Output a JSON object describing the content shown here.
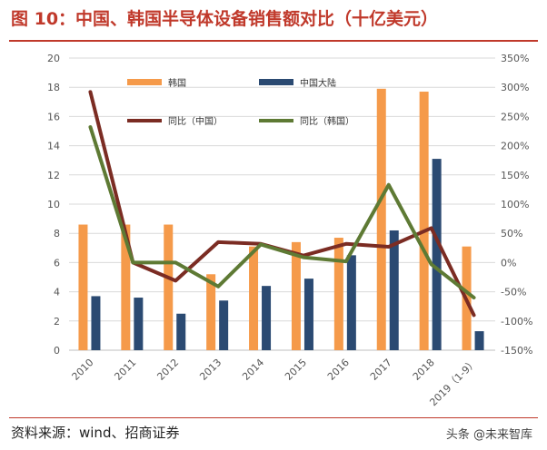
{
  "title": "图 10：中国、韩国半导体设备销售额对比（十亿美元）",
  "source": "资料来源：wind、招商证券",
  "watermark": "头条 @未来智库",
  "chart_data": {
    "type": "bar",
    "categories": [
      "2010",
      "2011",
      "2012",
      "2013",
      "2014",
      "2015",
      "2016",
      "2017",
      "2018",
      "2019（1-9）"
    ],
    "y_left": {
      "min": 0,
      "max": 20,
      "step": 2,
      "ticks": [
        "0",
        "2",
        "4",
        "6",
        "8",
        "10",
        "12",
        "14",
        "16",
        "18",
        "20"
      ]
    },
    "y_right": {
      "min": -150,
      "max": 350,
      "step": 50,
      "ticks": [
        "-150%",
        "-100%",
        "-50%",
        "0%",
        "50%",
        "100%",
        "150%",
        "200%",
        "250%",
        "300%",
        "350%"
      ]
    },
    "grid": "horizontal",
    "series": [
      {
        "name": "韩国",
        "type": "bar",
        "axis": "left",
        "color": "#F59A4A",
        "values": [
          8.6,
          8.6,
          8.6,
          5.2,
          7.1,
          7.4,
          7.7,
          17.9,
          17.7,
          7.1
        ]
      },
      {
        "name": "中国大陆",
        "type": "bar",
        "axis": "left",
        "color": "#2B4A72",
        "values": [
          3.7,
          3.6,
          2.5,
          3.4,
          4.4,
          4.9,
          6.5,
          8.2,
          13.1,
          1.3
        ]
      },
      {
        "name": "同比（中国）",
        "type": "line",
        "axis": "right",
        "color": "#7B2C23",
        "values": [
          292,
          0,
          -31,
          35,
          32,
          12,
          32,
          27,
          59,
          -90
        ]
      },
      {
        "name": "同比（韩国）",
        "type": "line",
        "axis": "right",
        "color": "#5E7A34",
        "values": [
          232,
          0,
          0,
          -41,
          31,
          9,
          2,
          133,
          -3,
          -60
        ]
      }
    ]
  }
}
